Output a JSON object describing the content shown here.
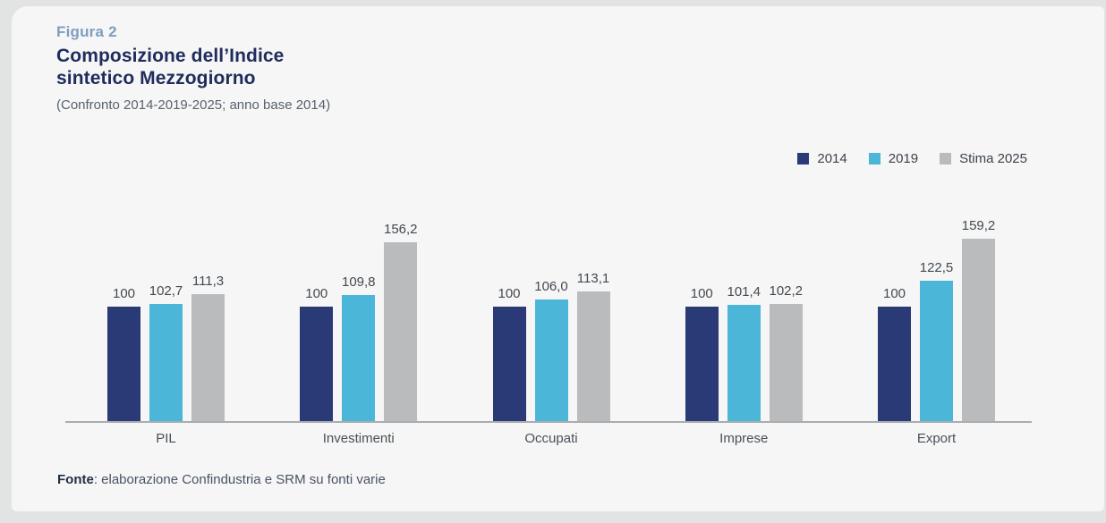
{
  "figure_label": "Figura 2",
  "title": "Composizione dell’Indice\nsintetico Mezzogiorno",
  "subtitle": "(Confronto 2014-2019-2025; anno base 2014)",
  "source": {
    "label": "Fonte",
    "text": ": elaborazione Confindustria e SRM su fonti varie"
  },
  "colors": {
    "figure_label": "#7f9dc2",
    "title": "#202c5e",
    "bar_2014": "#2a3a76",
    "bar_2019": "#4cb6d8",
    "bar_2025": "#b9bbbd",
    "axis_line": "#a9adb0"
  },
  "chart_data": {
    "type": "bar",
    "title": "Composizione dell’Indice sintetico Mezzogiorno",
    "subtitle": "(Confronto 2014-2019-2025; anno base 2014)",
    "categories": [
      "PIL",
      "Investimenti",
      "Occupati",
      "Imprese",
      "Export"
    ],
    "series": [
      {
        "name": "2014",
        "color": "#2a3a76",
        "values": [
          100,
          100,
          100,
          100,
          100
        ],
        "labels": [
          "100",
          "100",
          "100",
          "100",
          "100"
        ]
      },
      {
        "name": "2019",
        "color": "#4cb6d8",
        "values": [
          102.7,
          109.8,
          106.0,
          101.4,
          122.5
        ],
        "labels": [
          "102,7",
          "109,8",
          "106,0",
          "101,4",
          "122,5"
        ]
      },
      {
        "name": "Stima 2025",
        "color": "#b9bbbd",
        "values": [
          111.3,
          156.2,
          113.1,
          102.2,
          159.2
        ],
        "labels": [
          "111,3",
          "156,2",
          "113,1",
          "102,2",
          "159,2"
        ]
      }
    ],
    "xlabel": "",
    "ylabel": "",
    "ylim": [
      0,
      197
    ],
    "value_format": "decimal-comma",
    "baseline_value": 100,
    "grid": false,
    "legend_position": "top-right",
    "value_labels_shown": true
  }
}
